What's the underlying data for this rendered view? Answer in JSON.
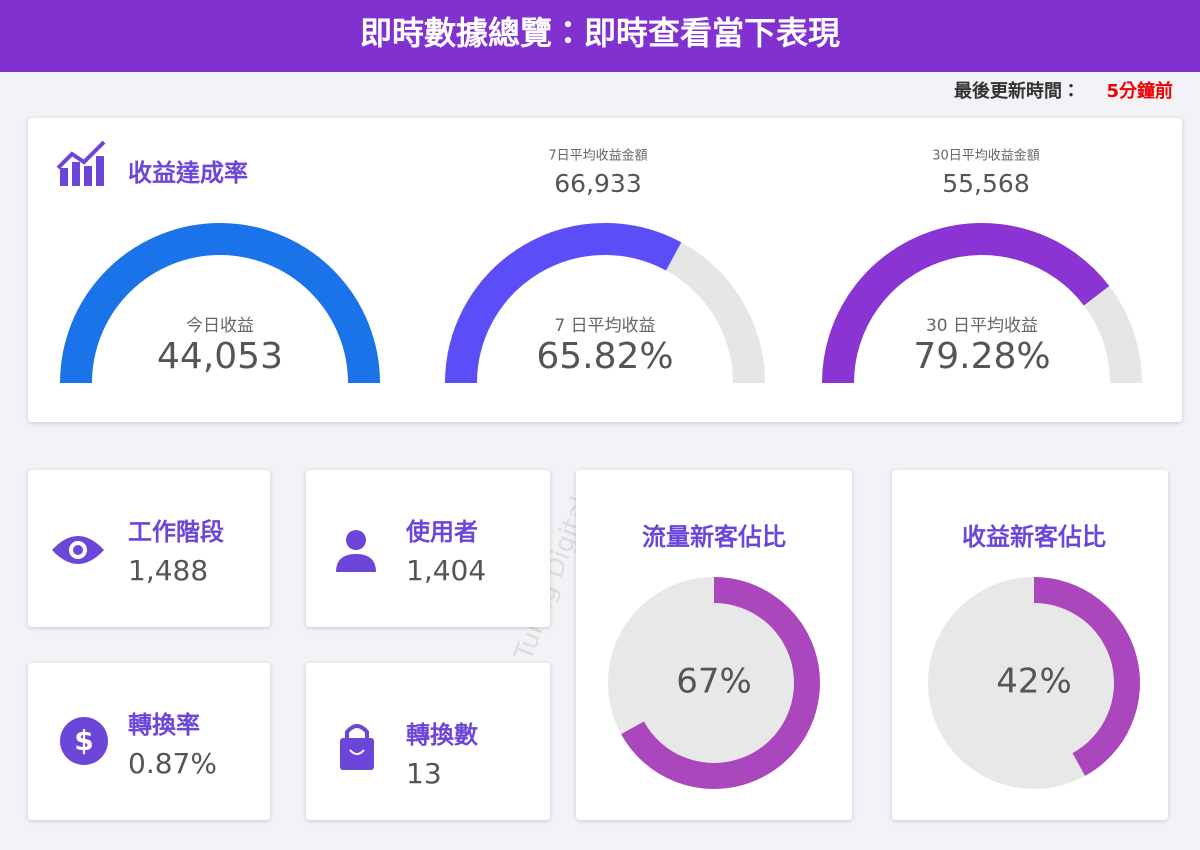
{
  "header": {
    "title": "即時數據總覽：即時查看當下表現",
    "updated_label": "最後更新時間：",
    "updated_value": "5分鐘前"
  },
  "revenue_card": {
    "title": "收益達成率",
    "today": {
      "label": "今日收益",
      "value": "44,053"
    },
    "avg7": {
      "amount_label": "7日平均收益金額",
      "amount": "66,933",
      "rate_label": "7 日平均收益",
      "rate": {
        "value": 65.82,
        "label": "65.82%"
      }
    },
    "avg30": {
      "amount_label": "30日平均收益金額",
      "amount": "55,568",
      "rate_label": "30 日平均收益",
      "rate": {
        "value": 79.28,
        "label": "79.28%"
      }
    }
  },
  "metrics": [
    {
      "label": "工作階段",
      "value": "1,488"
    },
    {
      "label": "使用者",
      "value": "1,404"
    },
    {
      "label": "轉換率",
      "value": "0.87%"
    },
    {
      "label": "轉換數",
      "value": "13"
    }
  ],
  "ratios": [
    {
      "title": "流量新客佔比",
      "share": {
        "value": 67,
        "label": "67%"
      }
    },
    {
      "title": "收益新客佔比",
      "share": {
        "value": 42,
        "label": "42%"
      }
    }
  ],
  "watermark": "Turing Digital"
}
